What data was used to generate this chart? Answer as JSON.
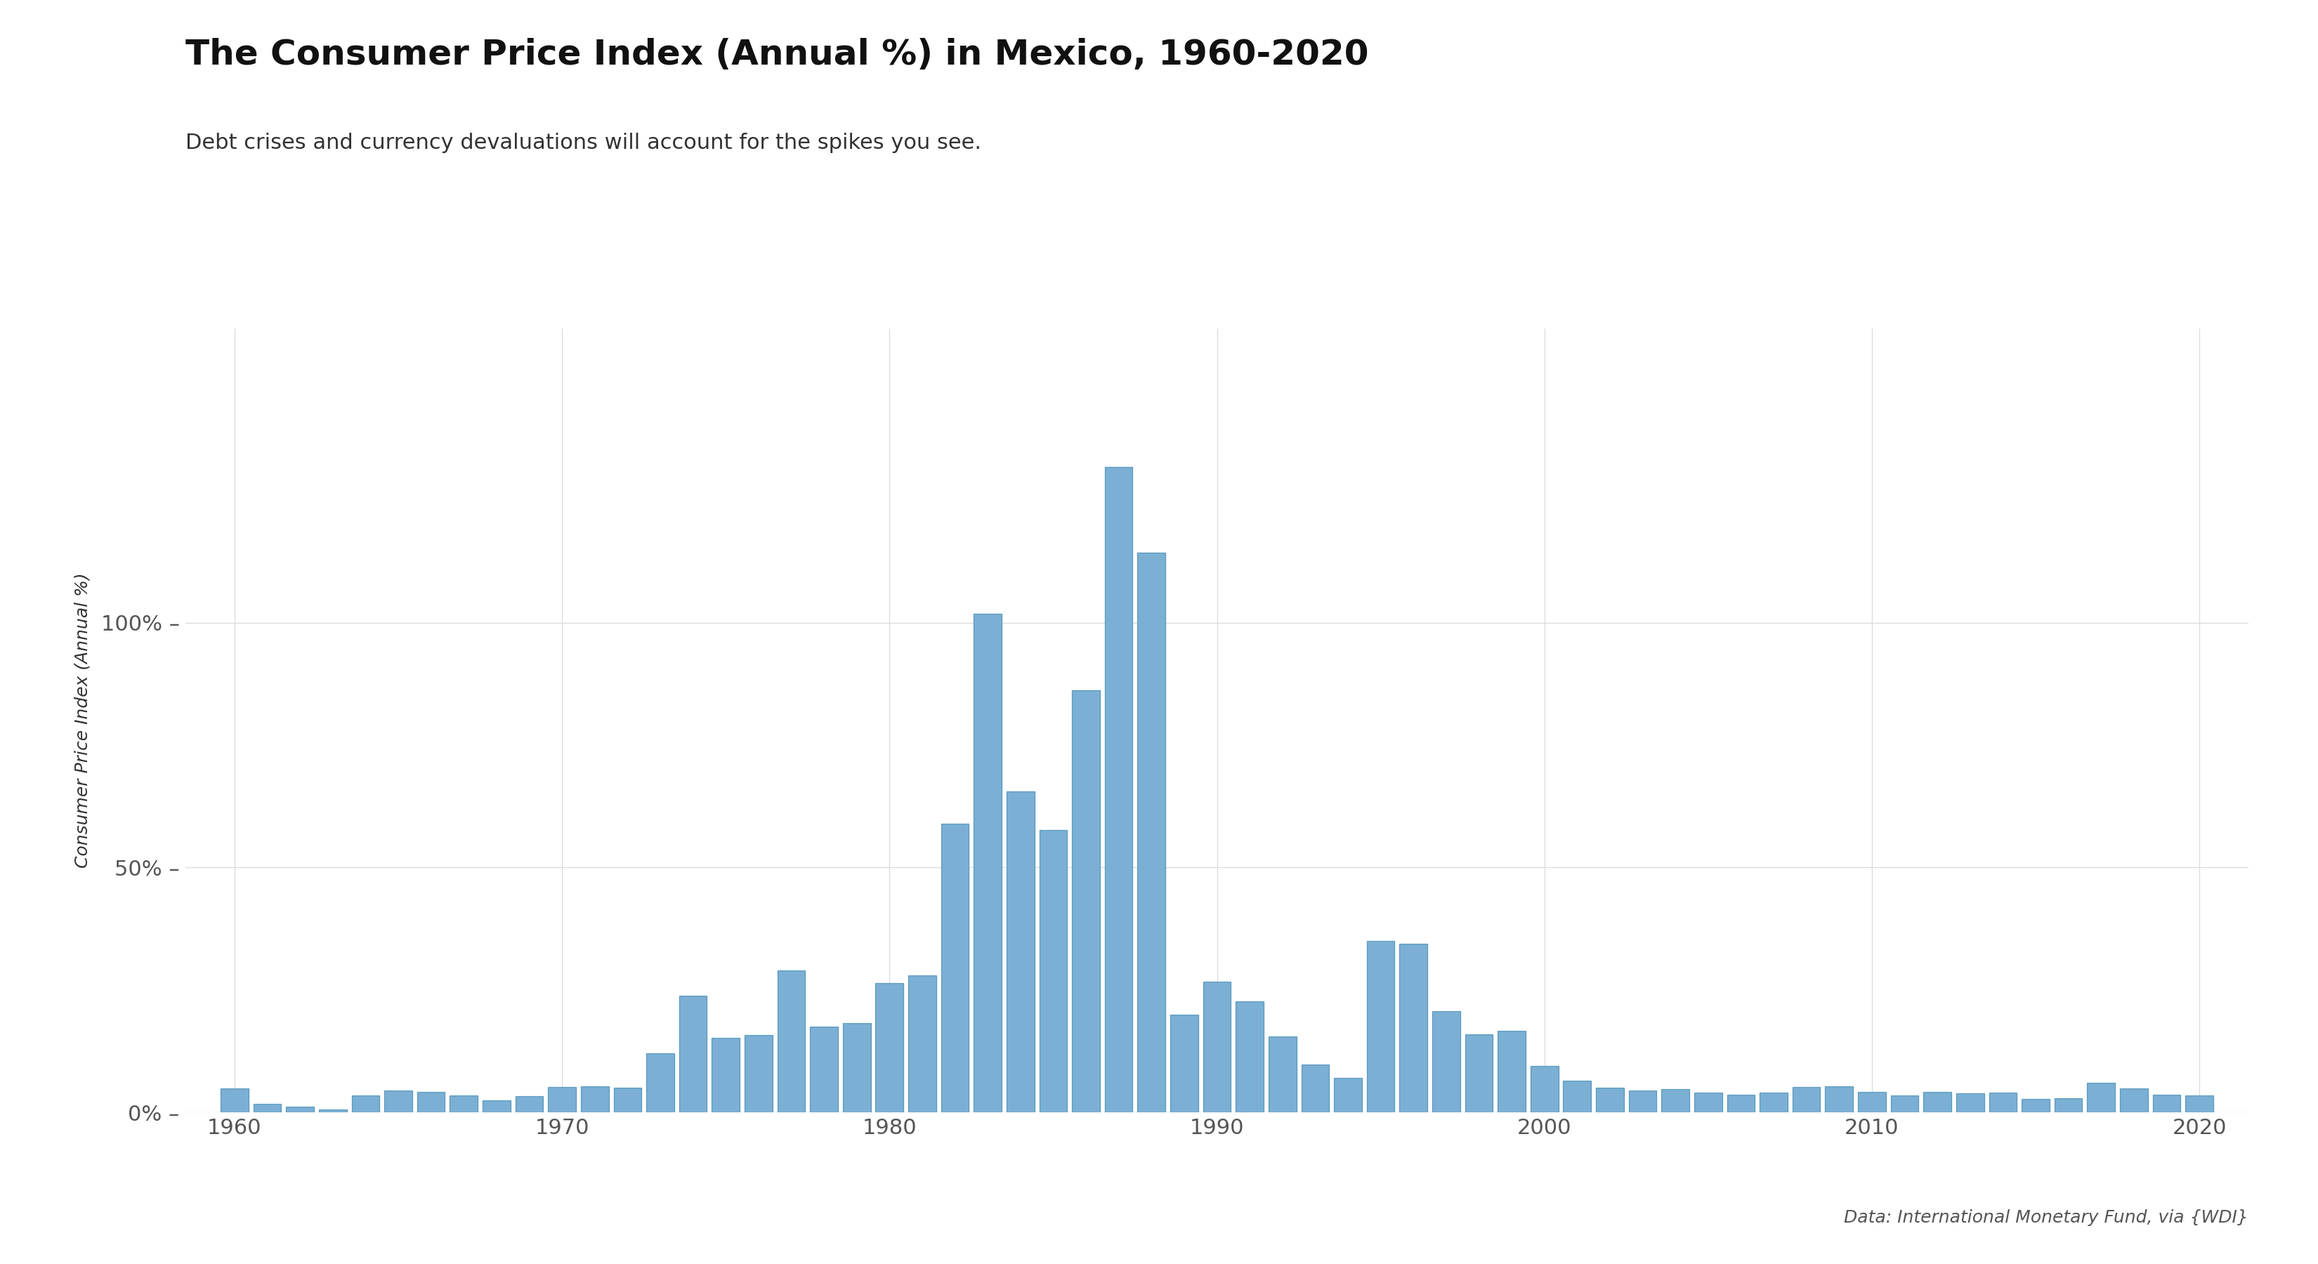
{
  "title": "The Consumer Price Index (Annual %) in Mexico, 1960-2020",
  "subtitle": "Debt crises and currency devaluations will account for the spikes you see.",
  "ylabel": "Consumer Price Index (Annual %)",
  "caption": "Data: International Monetary Fund, via {WDI}",
  "bar_color": "#7bafd4",
  "bar_edgecolor": "#5a9abf",
  "background_color": "#ffffff",
  "grid_color": "#dddddd",
  "title_fontsize": 36,
  "subtitle_fontsize": 22,
  "ylabel_fontsize": 18,
  "tick_fontsize": 22,
  "caption_fontsize": 18,
  "years": [
    1960,
    1961,
    1962,
    1963,
    1964,
    1965,
    1966,
    1967,
    1968,
    1969,
    1970,
    1971,
    1972,
    1973,
    1974,
    1975,
    1976,
    1977,
    1978,
    1979,
    1980,
    1981,
    1982,
    1983,
    1984,
    1985,
    1986,
    1987,
    1988,
    1989,
    1990,
    1991,
    1992,
    1993,
    1994,
    1995,
    1996,
    1997,
    1998,
    1999,
    2000,
    2001,
    2002,
    2003,
    2004,
    2005,
    2006,
    2007,
    2008,
    2009,
    2010,
    2011,
    2012,
    2013,
    2014,
    2015,
    2016,
    2017,
    2018,
    2019,
    2020
  ],
  "values": [
    4.9,
    1.7,
    1.2,
    0.6,
    3.5,
    4.5,
    4.2,
    3.4,
    2.5,
    3.3,
    5.2,
    5.3,
    5.0,
    12.0,
    23.8,
    15.2,
    15.8,
    29.0,
    17.5,
    18.2,
    26.4,
    27.9,
    58.9,
    101.8,
    65.5,
    57.7,
    86.2,
    131.8,
    114.2,
    20.0,
    26.7,
    22.7,
    15.5,
    9.8,
    7.0,
    35.0,
    34.4,
    20.6,
    15.9,
    16.6,
    9.5,
    6.4,
    5.0,
    4.5,
    4.7,
    4.0,
    3.6,
    4.0,
    5.1,
    5.3,
    4.2,
    3.4,
    4.1,
    3.8,
    4.0,
    2.7,
    2.8,
    6.0,
    4.9,
    3.6,
    3.4
  ],
  "ylim": [
    0,
    160
  ],
  "yticks": [
    0,
    50,
    100
  ],
  "ytick_labels": [
    "0% –",
    "50% –",
    "100% –"
  ],
  "xlim": [
    1958.5,
    2021.5
  ],
  "xticks": [
    1960,
    1970,
    1980,
    1990,
    2000,
    2010,
    2020
  ]
}
